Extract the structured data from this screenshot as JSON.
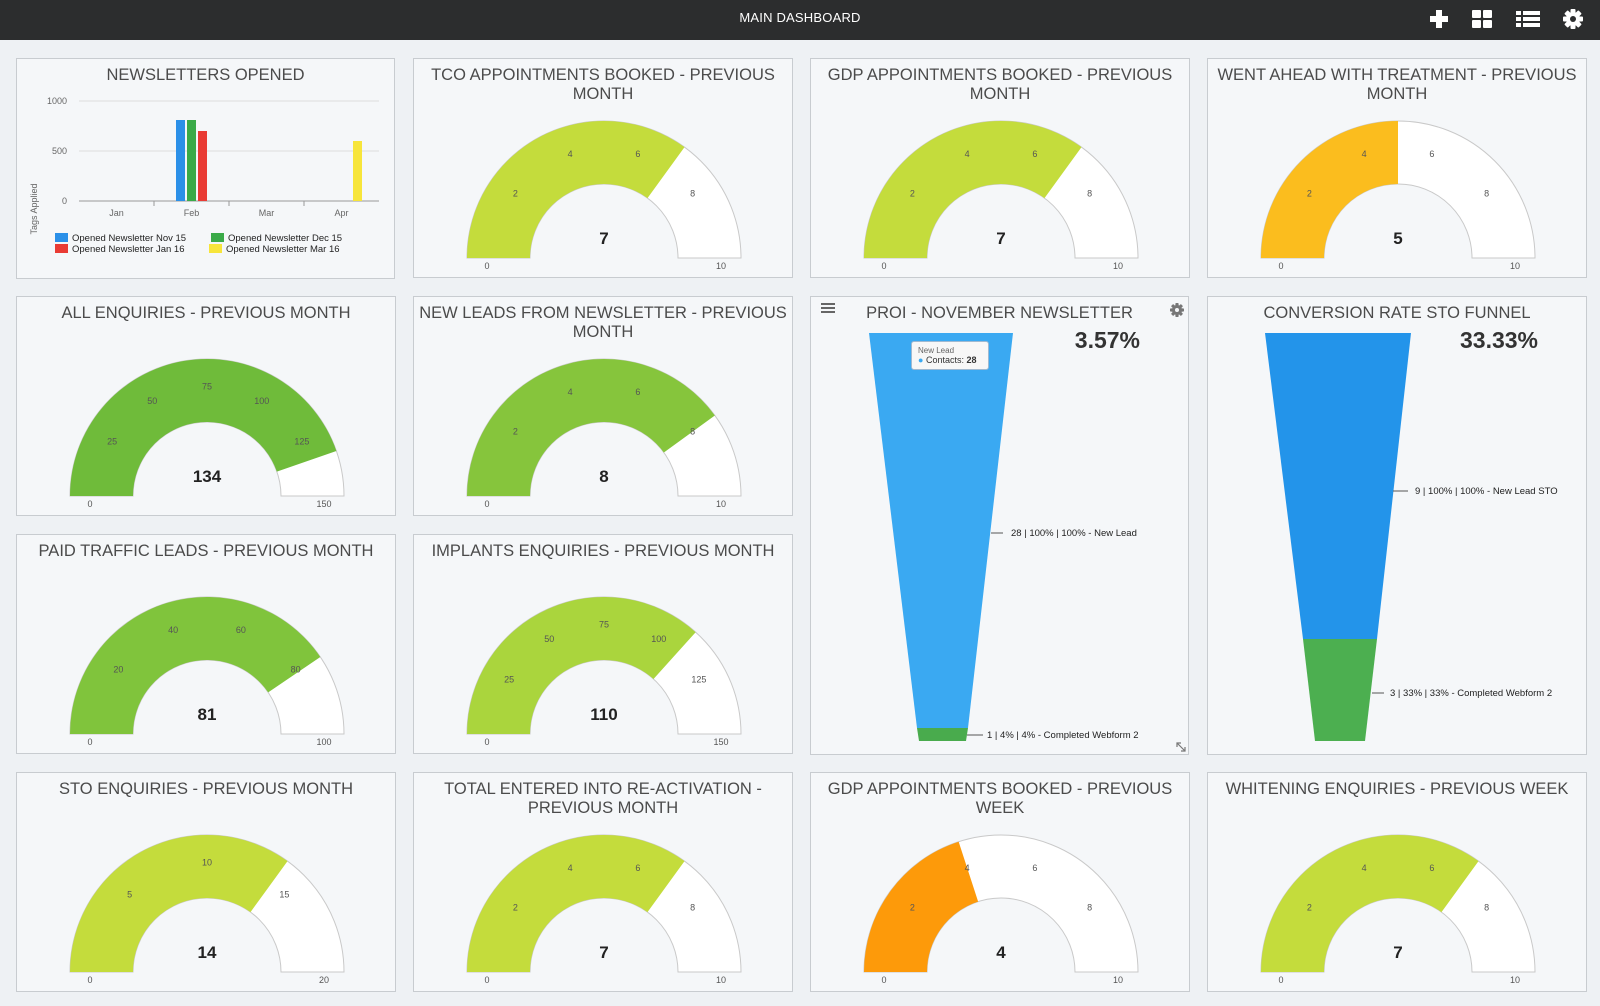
{
  "header": {
    "title": "MAIN DASHBOARD",
    "icons": [
      "plus-icon",
      "grid-icon",
      "list-icon",
      "gear-icon"
    ]
  },
  "gauges": [
    {
      "id": "tco",
      "title": "TCO APPOINTMENTS BOOKED - PREVIOUS MONTH",
      "value": 7,
      "display": "7",
      "max": 10,
      "ticks": [
        "0",
        "2",
        "4",
        "6",
        "8",
        "10"
      ],
      "color": "#c4dc3c"
    },
    {
      "id": "gdp",
      "title": "GDP APPOINTMENTS BOOKED - PREVIOUS MONTH",
      "value": 7,
      "display": "7",
      "max": 10,
      "ticks": [
        "0",
        "2",
        "4",
        "6",
        "8",
        "10"
      ],
      "color": "#c4dc3c"
    },
    {
      "id": "went",
      "title": "WENT AHEAD WITH TREATMENT - PREVIOUS MONTH",
      "value": 5,
      "display": "5",
      "max": 10,
      "ticks": [
        "0",
        "2",
        "4",
        "6",
        "8",
        "10"
      ],
      "color": "#fbbd1e"
    },
    {
      "id": "all",
      "title": "ALL ENQUIRIES - PREVIOUS MONTH",
      "value": 134,
      "display": "134",
      "max": 150,
      "ticks": [
        "0",
        "25",
        "50",
        "75",
        "100",
        "125",
        "150"
      ],
      "color": "#6fbb3a"
    },
    {
      "id": "newleads",
      "title": "NEW LEADS FROM NEWSLETTER - PREVIOUS MONTH",
      "value": 8,
      "display": "8",
      "max": 10,
      "ticks": [
        "0",
        "2",
        "4",
        "6",
        "8",
        "10"
      ],
      "color": "#86c53c"
    },
    {
      "id": "paid",
      "title": "PAID TRAFFIC LEADS - PREVIOUS MONTH",
      "value": 81,
      "display": "81",
      "max": 100,
      "ticks": [
        "0",
        "20",
        "40",
        "60",
        "80",
        "100"
      ],
      "color": "#80c43c"
    },
    {
      "id": "implants",
      "title": "IMPLANTS ENQUIRIES - PREVIOUS MONTH",
      "value": 110,
      "display": "110",
      "max": 150,
      "ticks": [
        "0",
        "25",
        "50",
        "75",
        "100",
        "125",
        "150"
      ],
      "color": "#aad53d"
    },
    {
      "id": "sto",
      "title": "STO ENQUIRIES - PREVIOUS MONTH",
      "value": 14,
      "display": "14",
      "max": 20,
      "ticks": [
        "0",
        "5",
        "10",
        "15",
        "20"
      ],
      "color": "#c4dc3c"
    },
    {
      "id": "reactivation",
      "title": "TOTAL ENTERED INTO RE-ACTIVATION - PREVIOUS MONTH",
      "value": 7,
      "display": "7",
      "max": 10,
      "ticks": [
        "0",
        "2",
        "4",
        "6",
        "8",
        "10"
      ],
      "color": "#c4dc3c"
    },
    {
      "id": "gdpweek",
      "title": "GDP APPOINTMENTS BOOKED - PREVIOUS WEEK",
      "value": 4,
      "display": "4",
      "max": 10,
      "ticks": [
        "0",
        "2",
        "4",
        "6",
        "8",
        "10"
      ],
      "color": "#fd9a0a"
    },
    {
      "id": "whitening",
      "title": "WHITENING ENQUIRIES - PREVIOUS WEEK",
      "value": 7,
      "display": "7",
      "max": 10,
      "ticks": [
        "0",
        "2",
        "4",
        "6",
        "8",
        "10"
      ],
      "color": "#c4dc3c"
    }
  ],
  "newsletters": {
    "title": "NEWSLETTERS OPENED",
    "ylabel": "Tags Applied",
    "y_ticks": [
      "1000",
      "500",
      "0"
    ],
    "x_ticks": [
      "Jan",
      "Feb",
      "Mar",
      "Apr"
    ],
    "legend": [
      {
        "name": "Opened Newsletter Nov 15",
        "color": "#2b90e8"
      },
      {
        "name": "Opened Newsletter Dec 15",
        "color": "#3aaa48"
      },
      {
        "name": "Opened Newsletter Jan 16",
        "color": "#e93b34"
      },
      {
        "name": "Opened Newsletter Mar 16",
        "color": "#f7e53b"
      }
    ]
  },
  "proi": {
    "title": "PROI - NOVEMBER NEWSLETTER",
    "percent": "3.57%",
    "tooltip_title": "New Lead",
    "tooltip_label": "Contacts:",
    "tooltip_value": "28",
    "label_top": "28 | 100% | 100% - New Lead",
    "label_bottom": "1 | 4% | 4% - Completed Webform 2"
  },
  "conversion": {
    "title": "CONVERSION RATE STO FUNNEL",
    "percent": "33.33%",
    "label_top": "9 | 100% | 100% - New Lead STO",
    "label_bottom": "3 | 33% | 33% - Completed Webform 2"
  },
  "chart_data": [
    {
      "type": "bar",
      "title": "NEWSLETTERS OPENED",
      "ylabel": "Tags Applied",
      "categories": [
        "Jan",
        "Feb",
        "Mar",
        "Apr"
      ],
      "ylim": [
        0,
        1000
      ],
      "series": [
        {
          "name": "Opened Newsletter Nov 15",
          "values": [
            0,
            810,
            0,
            0
          ]
        },
        {
          "name": "Opened Newsletter Dec 15",
          "values": [
            0,
            810,
            0,
            0
          ]
        },
        {
          "name": "Opened Newsletter Jan 16",
          "values": [
            0,
            700,
            0,
            0
          ]
        },
        {
          "name": "Opened Newsletter Mar 16",
          "values": [
            0,
            0,
            0,
            600
          ]
        }
      ],
      "legend": "bottom"
    },
    {
      "type": "funnel",
      "title": "PROI - NOVEMBER NEWSLETTER",
      "stages": [
        {
          "name": "New Lead",
          "count": 28,
          "pct": 100
        },
        {
          "name": "Completed Webform 2",
          "count": 1,
          "pct": 4
        }
      ]
    },
    {
      "type": "funnel",
      "title": "CONVERSION RATE STO FUNNEL",
      "stages": [
        {
          "name": "New Lead STO",
          "count": 9,
          "pct": 100
        },
        {
          "name": "Completed Webform 2",
          "count": 3,
          "pct": 33
        }
      ]
    }
  ]
}
